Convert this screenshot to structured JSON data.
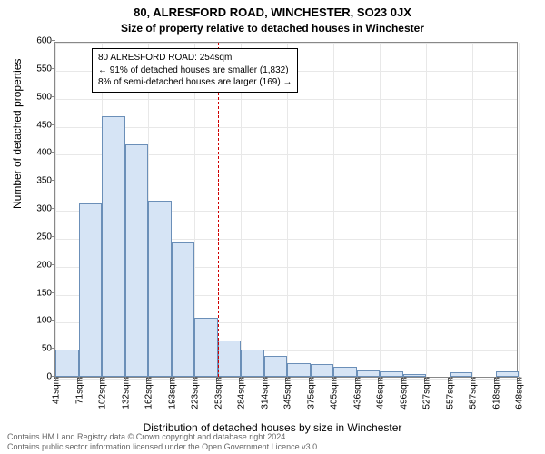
{
  "supertitle": "80, ALRESFORD ROAD, WINCHESTER, SO23 0JX",
  "title": "Size of property relative to detached houses in Winchester",
  "ylabel": "Number of detached properties",
  "xlabel": "Distribution of detached houses by size in Winchester",
  "title_fontsize": 13,
  "subtitle_fontsize": 12,
  "axis_label_fontsize": 12,
  "tick_fontsize": 10,
  "annotation_fontsize": 10,
  "footer_fontsize": 9,
  "chart": {
    "type": "histogram",
    "background_color": "#ffffff",
    "grid_color": "#e8e8e8",
    "border_color": "#888888",
    "bar_fill": "#d6e4f5",
    "bar_edge": "#6b8fb8",
    "ref_line_color": "#d00000",
    "ylim": [
      0,
      600
    ],
    "ytick_step": 50,
    "yticks": [
      0,
      50,
      100,
      150,
      200,
      250,
      300,
      350,
      400,
      450,
      500,
      550,
      600
    ],
    "xticks": [
      "41sqm",
      "71sqm",
      "102sqm",
      "132sqm",
      "162sqm",
      "193sqm",
      "223sqm",
      "253sqm",
      "284sqm",
      "314sqm",
      "345sqm",
      "375sqm",
      "405sqm",
      "436sqm",
      "466sqm",
      "496sqm",
      "527sqm",
      "557sqm",
      "587sqm",
      "618sqm",
      "648sqm"
    ],
    "bars": [
      48,
      310,
      465,
      415,
      315,
      240,
      105,
      65,
      48,
      38,
      25,
      22,
      18,
      12,
      10,
      5,
      0,
      8,
      0,
      10
    ],
    "ref_line_index": 7,
    "ref_value_sqm": 254
  },
  "annotation": {
    "lines": [
      "80 ALRESFORD ROAD: 254sqm",
      "← 91% of detached houses are smaller (1,832)",
      "8% of semi-detached houses are larger (169) →"
    ],
    "box_border": "#000000",
    "box_bg": "#ffffff"
  },
  "footer": {
    "line1": "Contains HM Land Registry data © Crown copyright and database right 2024.",
    "line2": "Contains public sector information licensed under the Open Government Licence v3.0.",
    "color": "#666666"
  }
}
